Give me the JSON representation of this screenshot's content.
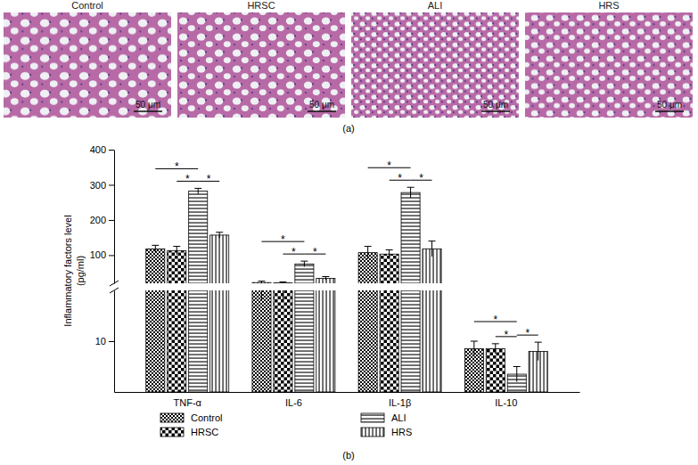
{
  "figure": {
    "panel_a": {
      "label": "(a)",
      "images": [
        {
          "title": "Control",
          "scale_bar": "50 μm"
        },
        {
          "title": "HRSC",
          "scale_bar": "50 μm"
        },
        {
          "title": "ALI",
          "scale_bar": "50 μm"
        },
        {
          "title": "HRS",
          "scale_bar": "50 μm"
        }
      ]
    },
    "panel_b": {
      "label": "(b)"
    }
  },
  "chart_data": {
    "type": "bar",
    "y_label": "Inflammatory factors level\n(pg/ml)",
    "categories": [
      "TNF-α",
      "IL-6",
      "IL-1β",
      "IL-10"
    ],
    "series": [
      {
        "name": "Control",
        "color": "#000000",
        "values": [
          118,
          22,
          107,
          8.5
        ],
        "errors": [
          10,
          4,
          18,
          1.5
        ]
      },
      {
        "name": "HRSC",
        "color": "#000000",
        "values": [
          113,
          21,
          103,
          8.5
        ],
        "errors": [
          12,
          3,
          12,
          1.0
        ]
      },
      {
        "name": "ALI",
        "color": "#000000",
        "values": [
          282,
          75,
          278,
          3.5
        ],
        "errors": [
          8,
          8,
          15,
          1.5
        ]
      },
      {
        "name": "HRS",
        "color": "#000000",
        "values": [
          157,
          34,
          118,
          8
        ],
        "errors": [
          8,
          5,
          22,
          1.8
        ]
      }
    ],
    "y_segments": [
      {
        "ylim": [
          0,
          20
        ],
        "yticks": [
          10
        ]
      },
      {
        "ylim": [
          20,
          400
        ],
        "yticks": [
          100,
          200,
          300,
          400
        ]
      }
    ],
    "legend": "bottom",
    "significance": [
      {
        "category": "TNF-α",
        "pair": [
          "Control",
          "ALI"
        ],
        "label": "*"
      },
      {
        "category": "TNF-α",
        "pair": [
          "HRSC",
          "ALI"
        ],
        "label": "*"
      },
      {
        "category": "TNF-α",
        "pair": [
          "ALI",
          "HRS"
        ],
        "label": "*"
      },
      {
        "category": "IL-6",
        "pair": [
          "Control",
          "ALI"
        ],
        "label": "*"
      },
      {
        "category": "IL-6",
        "pair": [
          "HRSC",
          "ALI"
        ],
        "label": "*"
      },
      {
        "category": "IL-6",
        "pair": [
          "ALI",
          "HRS"
        ],
        "label": "*"
      },
      {
        "category": "IL-1β",
        "pair": [
          "Control",
          "ALI"
        ],
        "label": "*"
      },
      {
        "category": "IL-1β",
        "pair": [
          "HRSC",
          "ALI"
        ],
        "label": "*"
      },
      {
        "category": "IL-1β",
        "pair": [
          "ALI",
          "HRS"
        ],
        "label": "*"
      },
      {
        "category": "IL-10",
        "pair": [
          "Control",
          "ALI"
        ],
        "label": "*"
      },
      {
        "category": "IL-10",
        "pair": [
          "HRSC",
          "ALI"
        ],
        "label": "*"
      },
      {
        "category": "IL-10",
        "pair": [
          "ALI",
          "HRS"
        ],
        "label": "*"
      }
    ]
  }
}
